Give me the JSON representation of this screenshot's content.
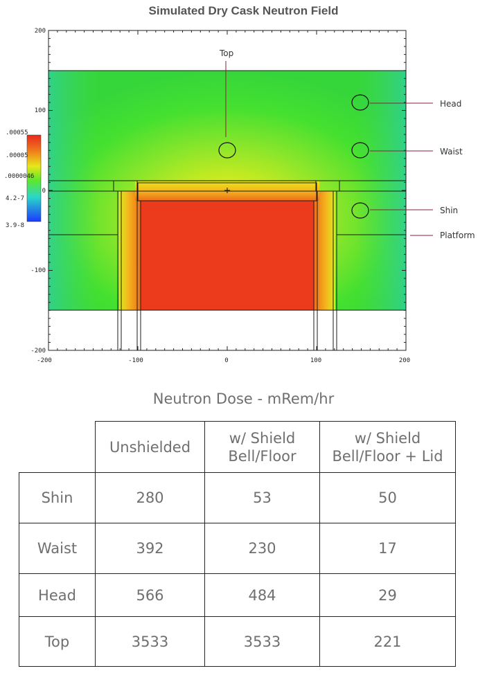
{
  "chart_data": [
    {
      "type": "heatmap",
      "title": "Simulated Dry Cask Neutron Field",
      "xlim": [
        -200,
        200
      ],
      "ylim": [
        -200,
        200
      ],
      "x_ticks": [
        "-200",
        "-100",
        "0",
        "100",
        "200"
      ],
      "y_ticks": [
        "200",
        "100",
        "0",
        "-100",
        "-200"
      ],
      "colorbar_labels": [
        ".00055",
        ".00005",
        ".0000046",
        "4.2-7",
        "3.9-8"
      ],
      "colors": {
        "max": "#e8281c",
        "high": "#f07a1c",
        "mid": "#e8e61a",
        "low": "#5ee82a",
        "lower": "#2ad6c8",
        "min": "#1a3aff"
      },
      "annotations": [
        {
          "label": "Top",
          "x": 0,
          "y": 50
        },
        {
          "label": "Head",
          "x": 150,
          "y": 110
        },
        {
          "label": "Waist",
          "x": 150,
          "y": 50
        },
        {
          "label": "Shin",
          "x": 150,
          "y": -25
        },
        {
          "label": "Platform",
          "x": 200,
          "y": -55
        }
      ]
    },
    {
      "type": "table",
      "title": "Neutron Dose - mRem/hr",
      "columns": [
        "Unshielded",
        "w/ Shield Bell/Floor",
        "w/ Shield Bell/Floor + Lid"
      ],
      "rows": [
        {
          "label": "Shin",
          "values": [
            280,
            53,
            50
          ]
        },
        {
          "label": "Waist",
          "values": [
            392,
            230,
            17
          ]
        },
        {
          "label": "Head",
          "values": [
            566,
            484,
            29
          ]
        },
        {
          "label": "Top",
          "values": [
            3533,
            3533,
            221
          ]
        }
      ]
    }
  ],
  "table_header": {
    "col1": "Unshielded",
    "col2_line1": "w/ Shield",
    "col2_line2": "Bell/Floor",
    "col3_line1": "w/ Shield",
    "col3_line2": "Bell/Floor + Lid"
  }
}
